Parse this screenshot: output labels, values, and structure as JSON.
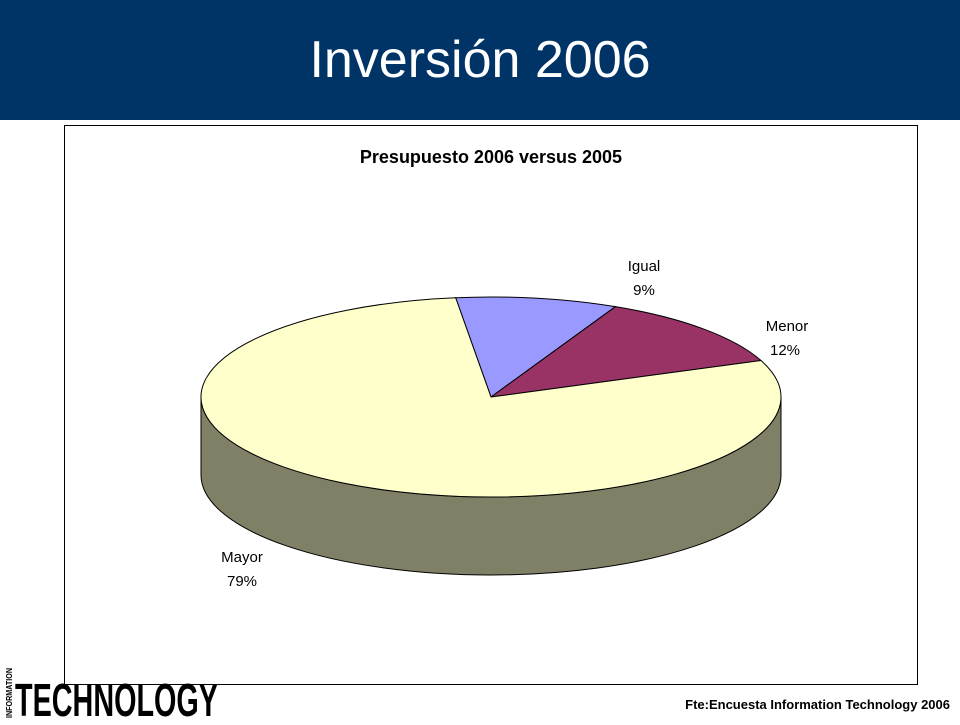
{
  "slide": {
    "title": "Inversión 2006",
    "source": "Fte:Encuesta Information Technology 2006"
  },
  "logo": {
    "small_text": "INFORMATION",
    "main_text": "TECHNOLOGY"
  },
  "colors": {
    "header": "#003366",
    "mayor": "#FFFFCC",
    "mayor_side": "#808066",
    "igual": "#9999FF",
    "menor": "#993366"
  },
  "chart_data": {
    "type": "pie",
    "title": "Presupuesto 2006 versus 2005",
    "slices": [
      {
        "label": "Igual",
        "value": 9,
        "percent_label": "9%",
        "color": "#9999FF"
      },
      {
        "label": "Menor",
        "value": 12,
        "percent_label": "12%",
        "color": "#993366"
      },
      {
        "label": "Mayor",
        "value": 79,
        "percent_label": "79%",
        "color": "#FFFFCC"
      }
    ],
    "style": "3d",
    "legend": "none"
  }
}
